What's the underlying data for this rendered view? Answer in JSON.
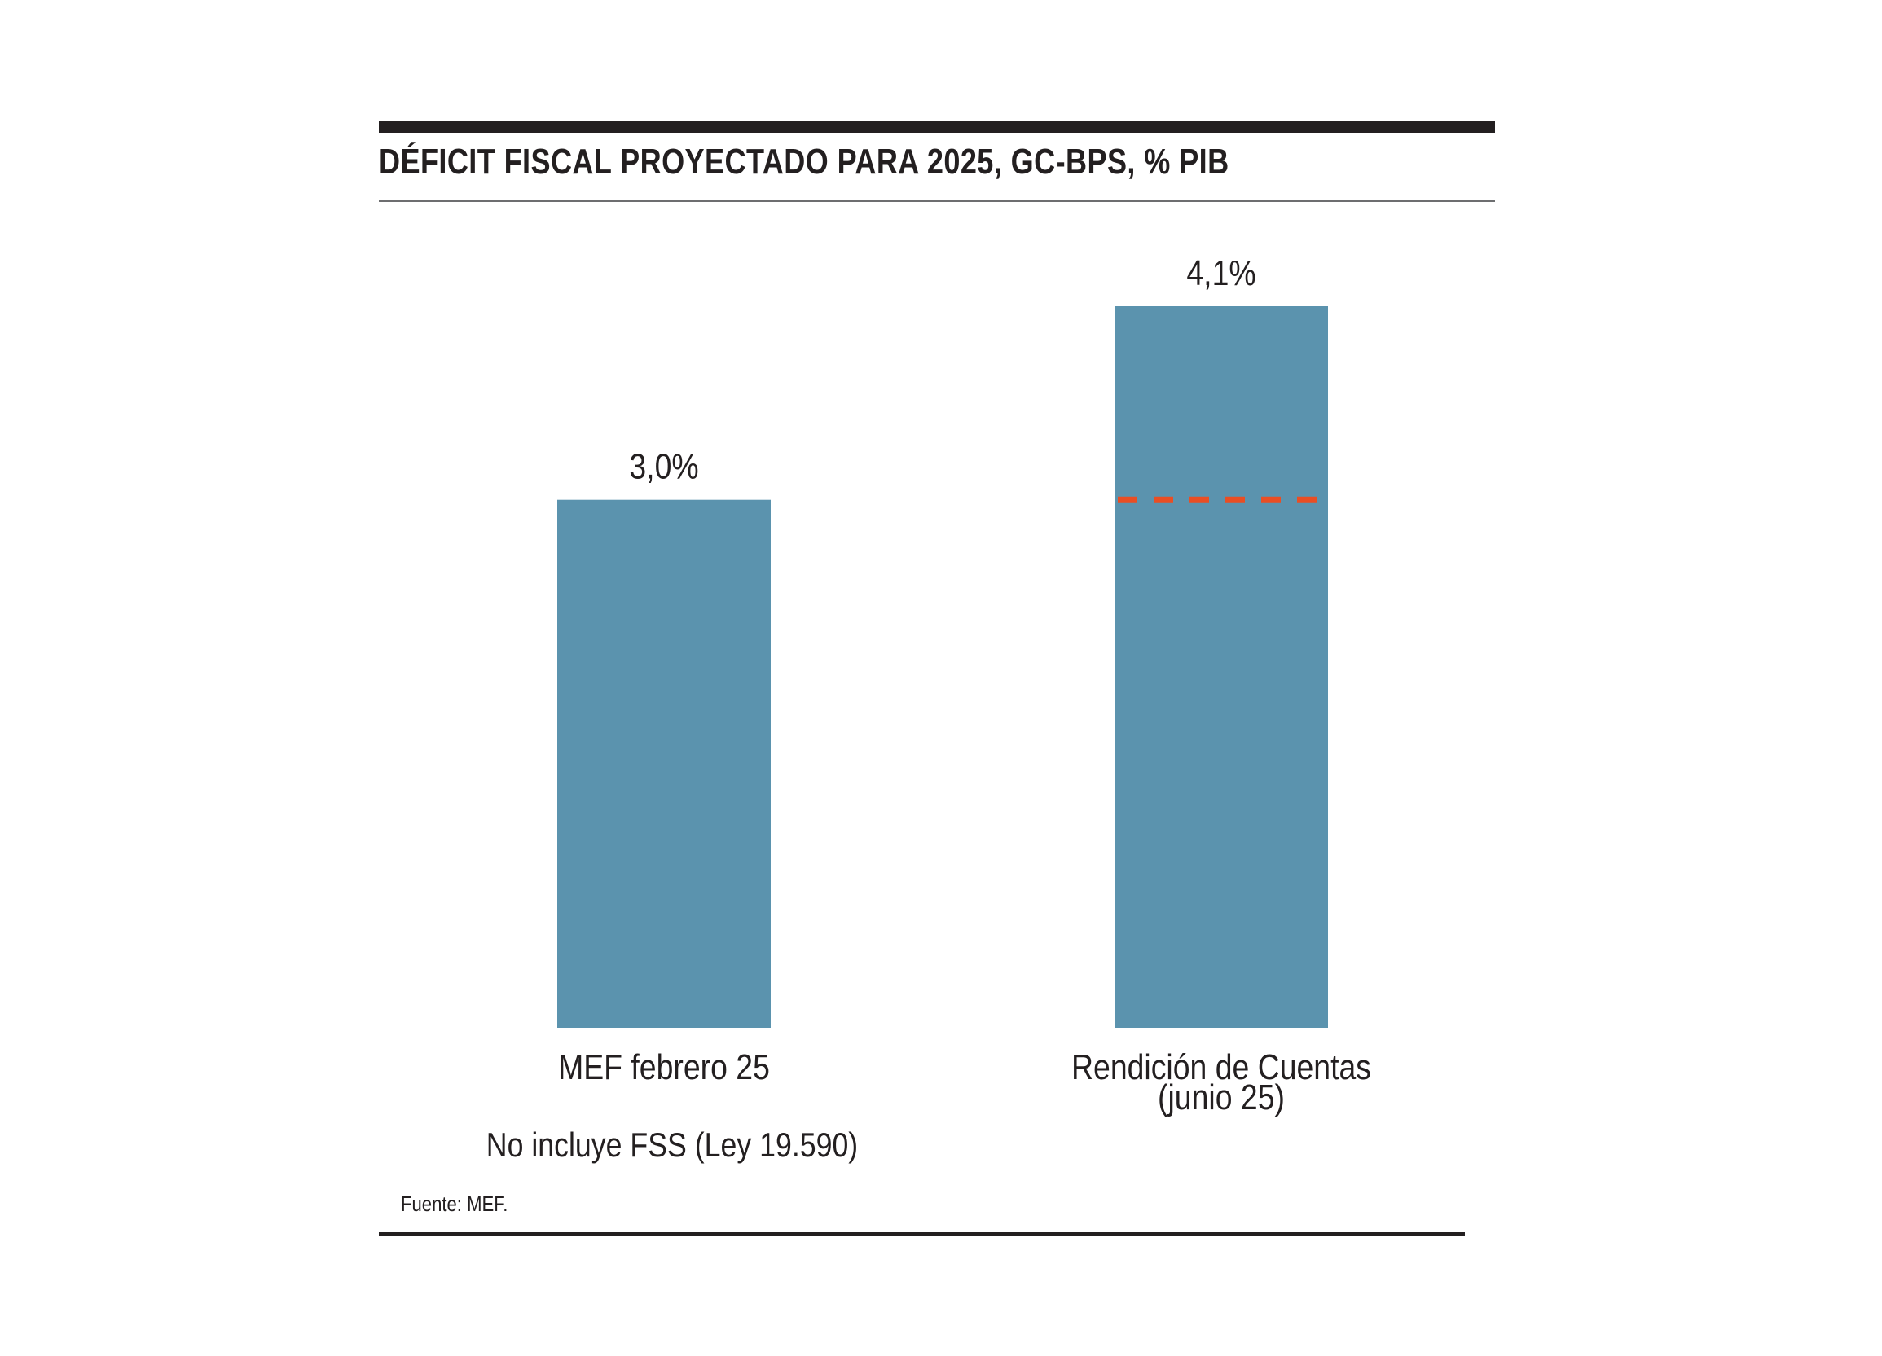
{
  "header": {
    "title": "DÉFICIT FISCAL PROYECTADO PARA 2025, GC-BPS, % PIB"
  },
  "chart_data": {
    "type": "bar",
    "title": "DÉFICIT FISCAL PROYECTADO PARA 2025, GC-BPS, % PIB",
    "categories": [
      "MEF febrero 25",
      "Rendición de Cuentas (junio 25)"
    ],
    "category_lines": [
      [
        "MEF febrero 25"
      ],
      [
        "Rendición de Cuentas",
        "(junio 25)"
      ]
    ],
    "values": [
      3.0,
      4.1
    ],
    "data_labels": [
      "3,0%",
      "4,1%"
    ],
    "reference_line": {
      "value": 3.0,
      "style": "dashed",
      "on_category": "Rendición de Cuentas (junio 25)"
    },
    "ylim": [
      0,
      4.1
    ],
    "grid": false,
    "colors": {
      "bar": "#5b93ae",
      "reference_line": "#e94e24",
      "text": "#231f20"
    }
  },
  "footer": {
    "note": "No incluye FSS (Ley 19.590)",
    "source": "Fuente: MEF."
  }
}
